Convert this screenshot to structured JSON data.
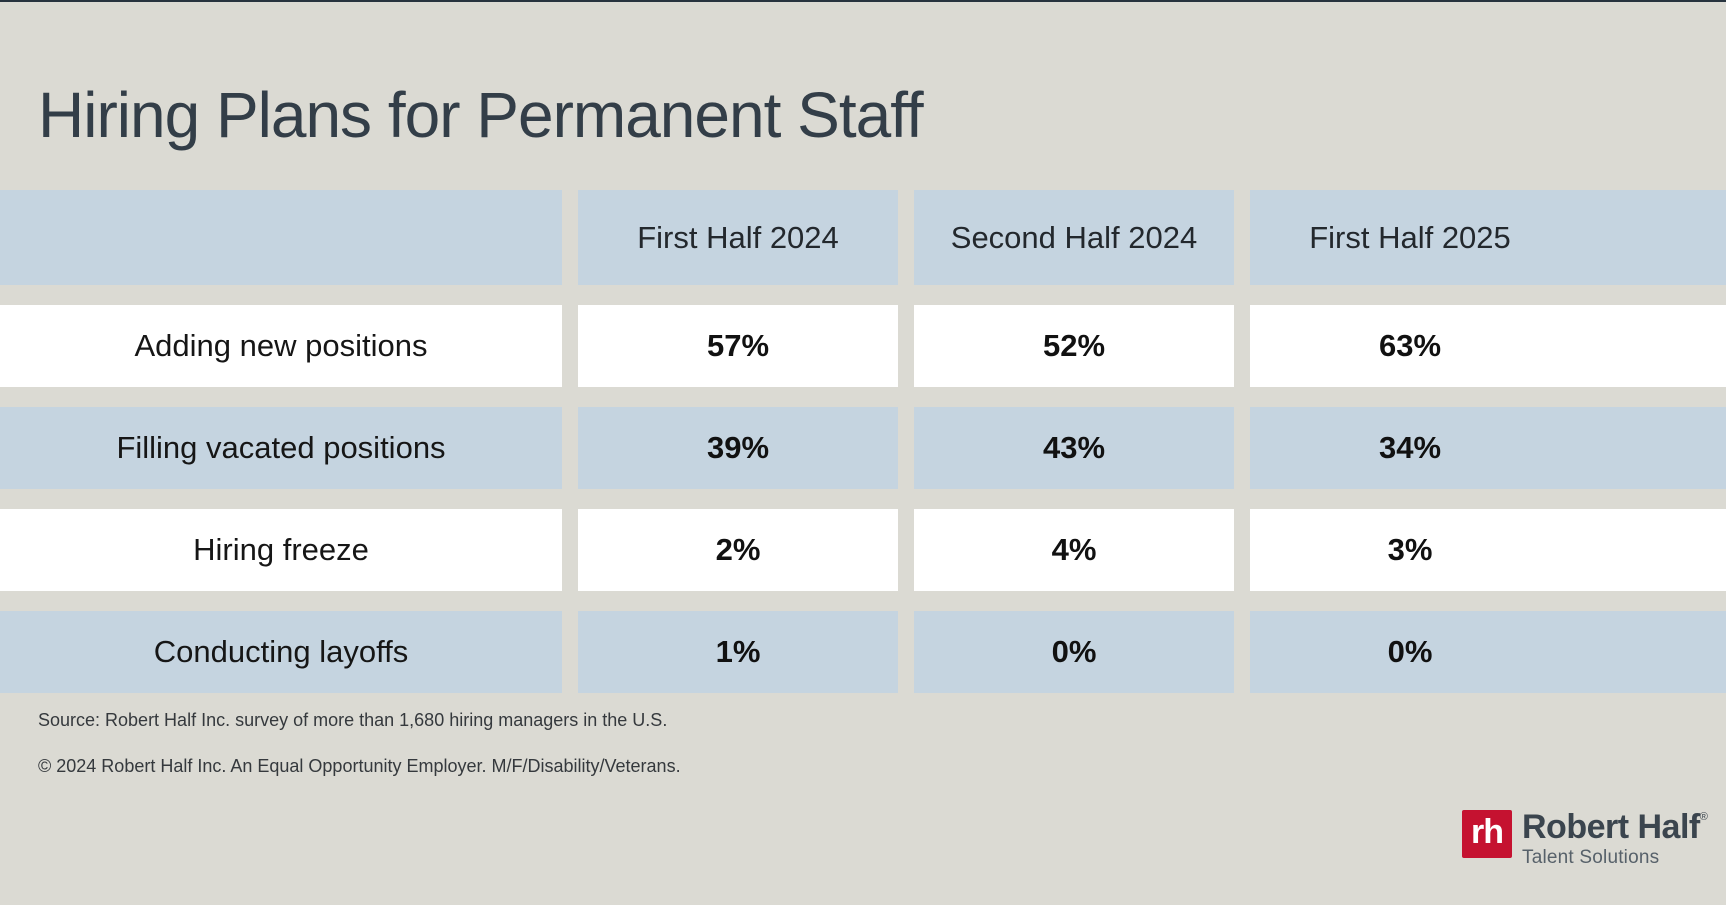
{
  "title": "Hiring Plans for Permanent Staff",
  "table": {
    "headers": [
      "First Half 2024",
      "Second Half 2024",
      "First Half 2025"
    ],
    "rows": [
      {
        "label": "Adding new positions",
        "values": [
          "57%",
          "52%",
          "63%"
        ]
      },
      {
        "label": "Filling vacated positions",
        "values": [
          "39%",
          "43%",
          "34%"
        ]
      },
      {
        "label": "Hiring freeze",
        "values": [
          "2%",
          "4%",
          "3%"
        ]
      },
      {
        "label": "Conducting layoffs",
        "values": [
          "1%",
          "0%",
          "0%"
        ]
      }
    ]
  },
  "footer": {
    "source": "Source: Robert Half Inc. survey of more than 1,680 hiring managers in the U.S.",
    "copyright": "© 2024 Robert Half Inc. An Equal Opportunity Employer. M/F/Disability/Veterans."
  },
  "logo": {
    "monogram": "rh",
    "brand": "Robert Half",
    "trademark": "®",
    "tagline": "Talent Solutions"
  },
  "colors": {
    "background": "#dbdad3",
    "cell_blue": "#c5d4e0",
    "cell_white": "#ffffff",
    "title_text": "#333e48",
    "body_text": "#161616",
    "brand_red": "#c51230",
    "top_rule": "#27333e"
  },
  "chart_data": {
    "type": "table",
    "title": "Hiring Plans for Permanent Staff",
    "columns": [
      "",
      "First Half 2024",
      "Second Half 2024",
      "First Half 2025"
    ],
    "rows": [
      {
        "label": "Adding new positions",
        "values": [
          57,
          52,
          63
        ]
      },
      {
        "label": "Filling vacated positions",
        "values": [
          39,
          43,
          34
        ]
      },
      {
        "label": "Hiring freeze",
        "values": [
          2,
          4,
          3
        ]
      },
      {
        "label": "Conducting layoffs",
        "values": [
          1,
          0,
          0
        ]
      }
    ],
    "value_unit": "%",
    "source": "Robert Half Inc. survey of more than 1,680 hiring managers in the U.S.",
    "layout": {
      "row_banding": [
        "white",
        "blue"
      ],
      "header_fill": "blue",
      "grid": false
    }
  }
}
